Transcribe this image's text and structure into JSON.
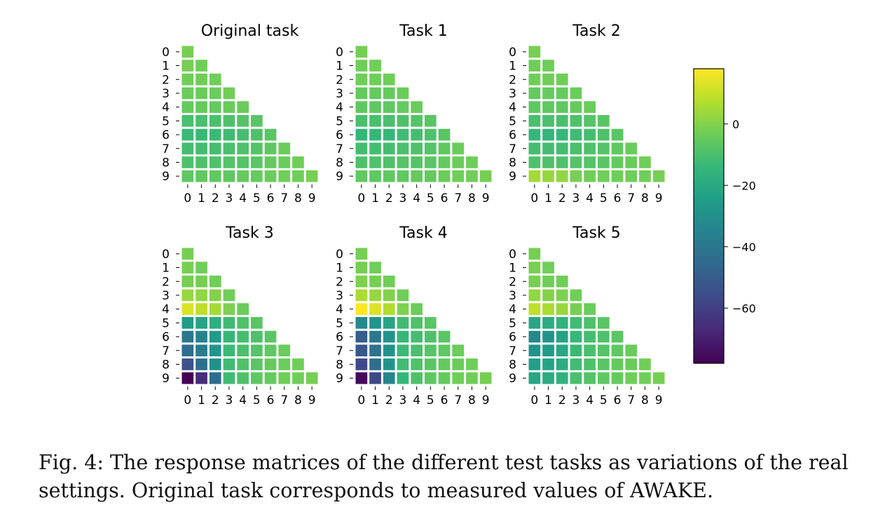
{
  "chart_data": {
    "type": "heatmap",
    "layout": "lower-triangular response matrices, 2 rows x 3 columns",
    "row_labels": [
      "0",
      "1",
      "2",
      "3",
      "4",
      "5",
      "6",
      "7",
      "8",
      "9"
    ],
    "col_labels": [
      "0",
      "1",
      "2",
      "3",
      "4",
      "5",
      "6",
      "7",
      "8",
      "9"
    ],
    "grid": false,
    "colormap": "viridis",
    "color_range": [
      -78,
      18
    ],
    "colorbar": {
      "ticks": [
        0,
        -20,
        -40,
        -60
      ],
      "tick_labels": [
        "0",
        "−20",
        "−40",
        "−60"
      ],
      "placement": "right"
    },
    "panels": [
      {
        "title": "Original task",
        "values": [
          [
            -2
          ],
          [
            -2,
            -3
          ],
          [
            -3,
            -3,
            -3
          ],
          [
            -4,
            -4,
            -4,
            -3
          ],
          [
            -5,
            -5,
            -5,
            -4,
            -4
          ],
          [
            -10,
            -10,
            -10,
            -9,
            -8,
            -7
          ],
          [
            -13,
            -13,
            -13,
            -12,
            -11,
            -9,
            -7
          ],
          [
            -11,
            -11,
            -11,
            -10,
            -9,
            -8,
            -6,
            -4
          ],
          [
            -9,
            -9,
            -9,
            -8,
            -8,
            -7,
            -5,
            -4,
            -3
          ],
          [
            -6,
            -6,
            -6,
            -6,
            -5,
            -5,
            -4,
            -3,
            -3,
            -2
          ]
        ]
      },
      {
        "title": "Task 1",
        "values": [
          [
            -2
          ],
          [
            -3,
            -3
          ],
          [
            -3,
            -3,
            -3
          ],
          [
            -5,
            -5,
            -5,
            -4
          ],
          [
            -6,
            -6,
            -6,
            -5,
            -4
          ],
          [
            -10,
            -10,
            -10,
            -9,
            -8,
            -7
          ],
          [
            -14,
            -14,
            -14,
            -12,
            -11,
            -9,
            -7
          ],
          [
            -11,
            -11,
            -11,
            -10,
            -9,
            -8,
            -6,
            -4
          ],
          [
            -9,
            -9,
            -9,
            -8,
            -8,
            -7,
            -5,
            -4,
            -3
          ],
          [
            -6,
            -6,
            -6,
            -6,
            -5,
            -5,
            -4,
            -3,
            -3,
            -2
          ]
        ]
      },
      {
        "title": "Task 2",
        "values": [
          [
            -2
          ],
          [
            -3,
            -3
          ],
          [
            -3,
            -3,
            -3
          ],
          [
            -5,
            -5,
            -5,
            -4
          ],
          [
            -6,
            -6,
            -6,
            -5,
            -4
          ],
          [
            -10,
            -10,
            -10,
            -9,
            -8,
            -7
          ],
          [
            -14,
            -15,
            -14,
            -12,
            -11,
            -9,
            -7
          ],
          [
            -11,
            -11,
            -11,
            -10,
            -9,
            -8,
            -6,
            -4
          ],
          [
            -9,
            -9,
            -9,
            -8,
            -8,
            -7,
            -5,
            -4,
            -3
          ],
          [
            5,
            3,
            2,
            -2,
            -3,
            -3,
            -3,
            -3,
            -3,
            -2
          ]
        ]
      },
      {
        "title": "Task 3",
        "values": [
          [
            -2
          ],
          [
            -2,
            -3
          ],
          [
            -2,
            -2,
            -3
          ],
          [
            3,
            2,
            0,
            -3
          ],
          [
            13,
            9,
            5,
            -1,
            -4
          ],
          [
            -25,
            -22,
            -18,
            -12,
            -9,
            -7
          ],
          [
            -40,
            -35,
            -26,
            -14,
            -11,
            -9,
            -7
          ],
          [
            -44,
            -38,
            -28,
            -13,
            -10,
            -8,
            -6,
            -4
          ],
          [
            -54,
            -43,
            -30,
            -12,
            -9,
            -7,
            -5,
            -4,
            -3
          ],
          [
            -78,
            -66,
            -44,
            -12,
            -9,
            -6,
            -5,
            -3,
            -3,
            -2
          ]
        ]
      },
      {
        "title": "Task 4",
        "values": [
          [
            -2
          ],
          [
            -2,
            -3
          ],
          [
            -1,
            -2,
            -3
          ],
          [
            6,
            3,
            0,
            -3
          ],
          [
            18,
            13,
            7,
            -1,
            -4
          ],
          [
            -33,
            -28,
            -22,
            -12,
            -9,
            -7
          ],
          [
            -50,
            -40,
            -28,
            -14,
            -11,
            -9,
            -7
          ],
          [
            -52,
            -42,
            -29,
            -13,
            -10,
            -8,
            -6,
            -4
          ],
          [
            -57,
            -44,
            -28,
            -12,
            -9,
            -7,
            -5,
            -4,
            -3
          ],
          [
            -76,
            -57,
            -34,
            -14,
            -9,
            -6,
            -5,
            -3,
            -3,
            -2
          ]
        ]
      },
      {
        "title": "Task 5",
        "values": [
          [
            -2
          ],
          [
            -2,
            -3
          ],
          [
            -2,
            -3,
            -3
          ],
          [
            2,
            0,
            -1,
            -3
          ],
          [
            9,
            6,
            3,
            -2,
            -4
          ],
          [
            -21,
            -19,
            -16,
            -12,
            -9,
            -7
          ],
          [
            -33,
            -29,
            -22,
            -14,
            -11,
            -9,
            -7
          ],
          [
            -29,
            -26,
            -21,
            -13,
            -10,
            -8,
            -6,
            -4
          ],
          [
            -24,
            -22,
            -19,
            -12,
            -9,
            -7,
            -5,
            -4,
            -3
          ],
          [
            -21,
            -19,
            -16,
            -10,
            -8,
            -6,
            -5,
            -3,
            -3,
            -2
          ]
        ]
      }
    ]
  },
  "caption": "Fig. 4: The response matrices of the different test tasks as variations of the real settings. Original task corresponds to measured values of AWAKE."
}
